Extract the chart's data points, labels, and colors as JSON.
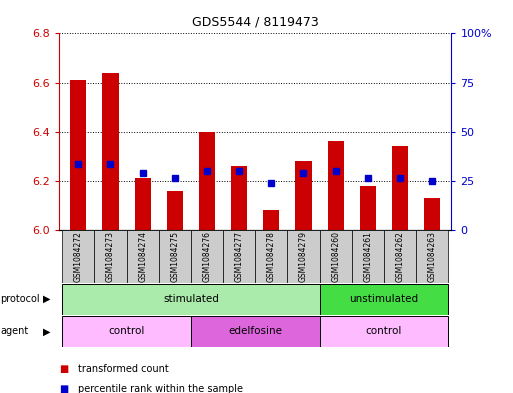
{
  "title": "GDS5544 / 8119473",
  "samples": [
    "GSM1084272",
    "GSM1084273",
    "GSM1084274",
    "GSM1084275",
    "GSM1084276",
    "GSM1084277",
    "GSM1084278",
    "GSM1084279",
    "GSM1084260",
    "GSM1084261",
    "GSM1084262",
    "GSM1084263"
  ],
  "red_values": [
    6.61,
    6.64,
    6.21,
    6.16,
    6.4,
    6.26,
    6.08,
    6.28,
    6.36,
    6.18,
    6.34,
    6.13
  ],
  "blue_values": [
    6.27,
    6.27,
    6.23,
    6.21,
    6.24,
    6.24,
    6.19,
    6.23,
    6.24,
    6.21,
    6.21,
    6.2
  ],
  "ylim_left": [
    6.0,
    6.8
  ],
  "ylim_right": [
    0,
    100
  ],
  "yticks_left": [
    6.0,
    6.2,
    6.4,
    6.6,
    6.8
  ],
  "yticks_right": [
    0,
    25,
    50,
    75,
    100
  ],
  "ytick_labels_right": [
    "0",
    "25",
    "50",
    "75",
    "100%"
  ],
  "red_color": "#cc0000",
  "blue_color": "#0000cc",
  "bar_width": 0.5,
  "blue_marker_size": 4,
  "protocol_groups": [
    {
      "label": "stimulated",
      "start": 0,
      "end": 7,
      "color": "#aaeaaa"
    },
    {
      "label": "unstimulated",
      "start": 8,
      "end": 11,
      "color": "#44dd44"
    }
  ],
  "agent_groups": [
    {
      "label": "control",
      "start": 0,
      "end": 3,
      "color": "#ffbbff"
    },
    {
      "label": "edelfosine",
      "start": 4,
      "end": 7,
      "color": "#dd66dd"
    },
    {
      "label": "control",
      "start": 8,
      "end": 11,
      "color": "#ffbbff"
    }
  ],
  "legend_red": "transformed count",
  "legend_blue": "percentile rank within the sample",
  "bg_color": "#ffffff",
  "label_row_bg": "#cccccc"
}
